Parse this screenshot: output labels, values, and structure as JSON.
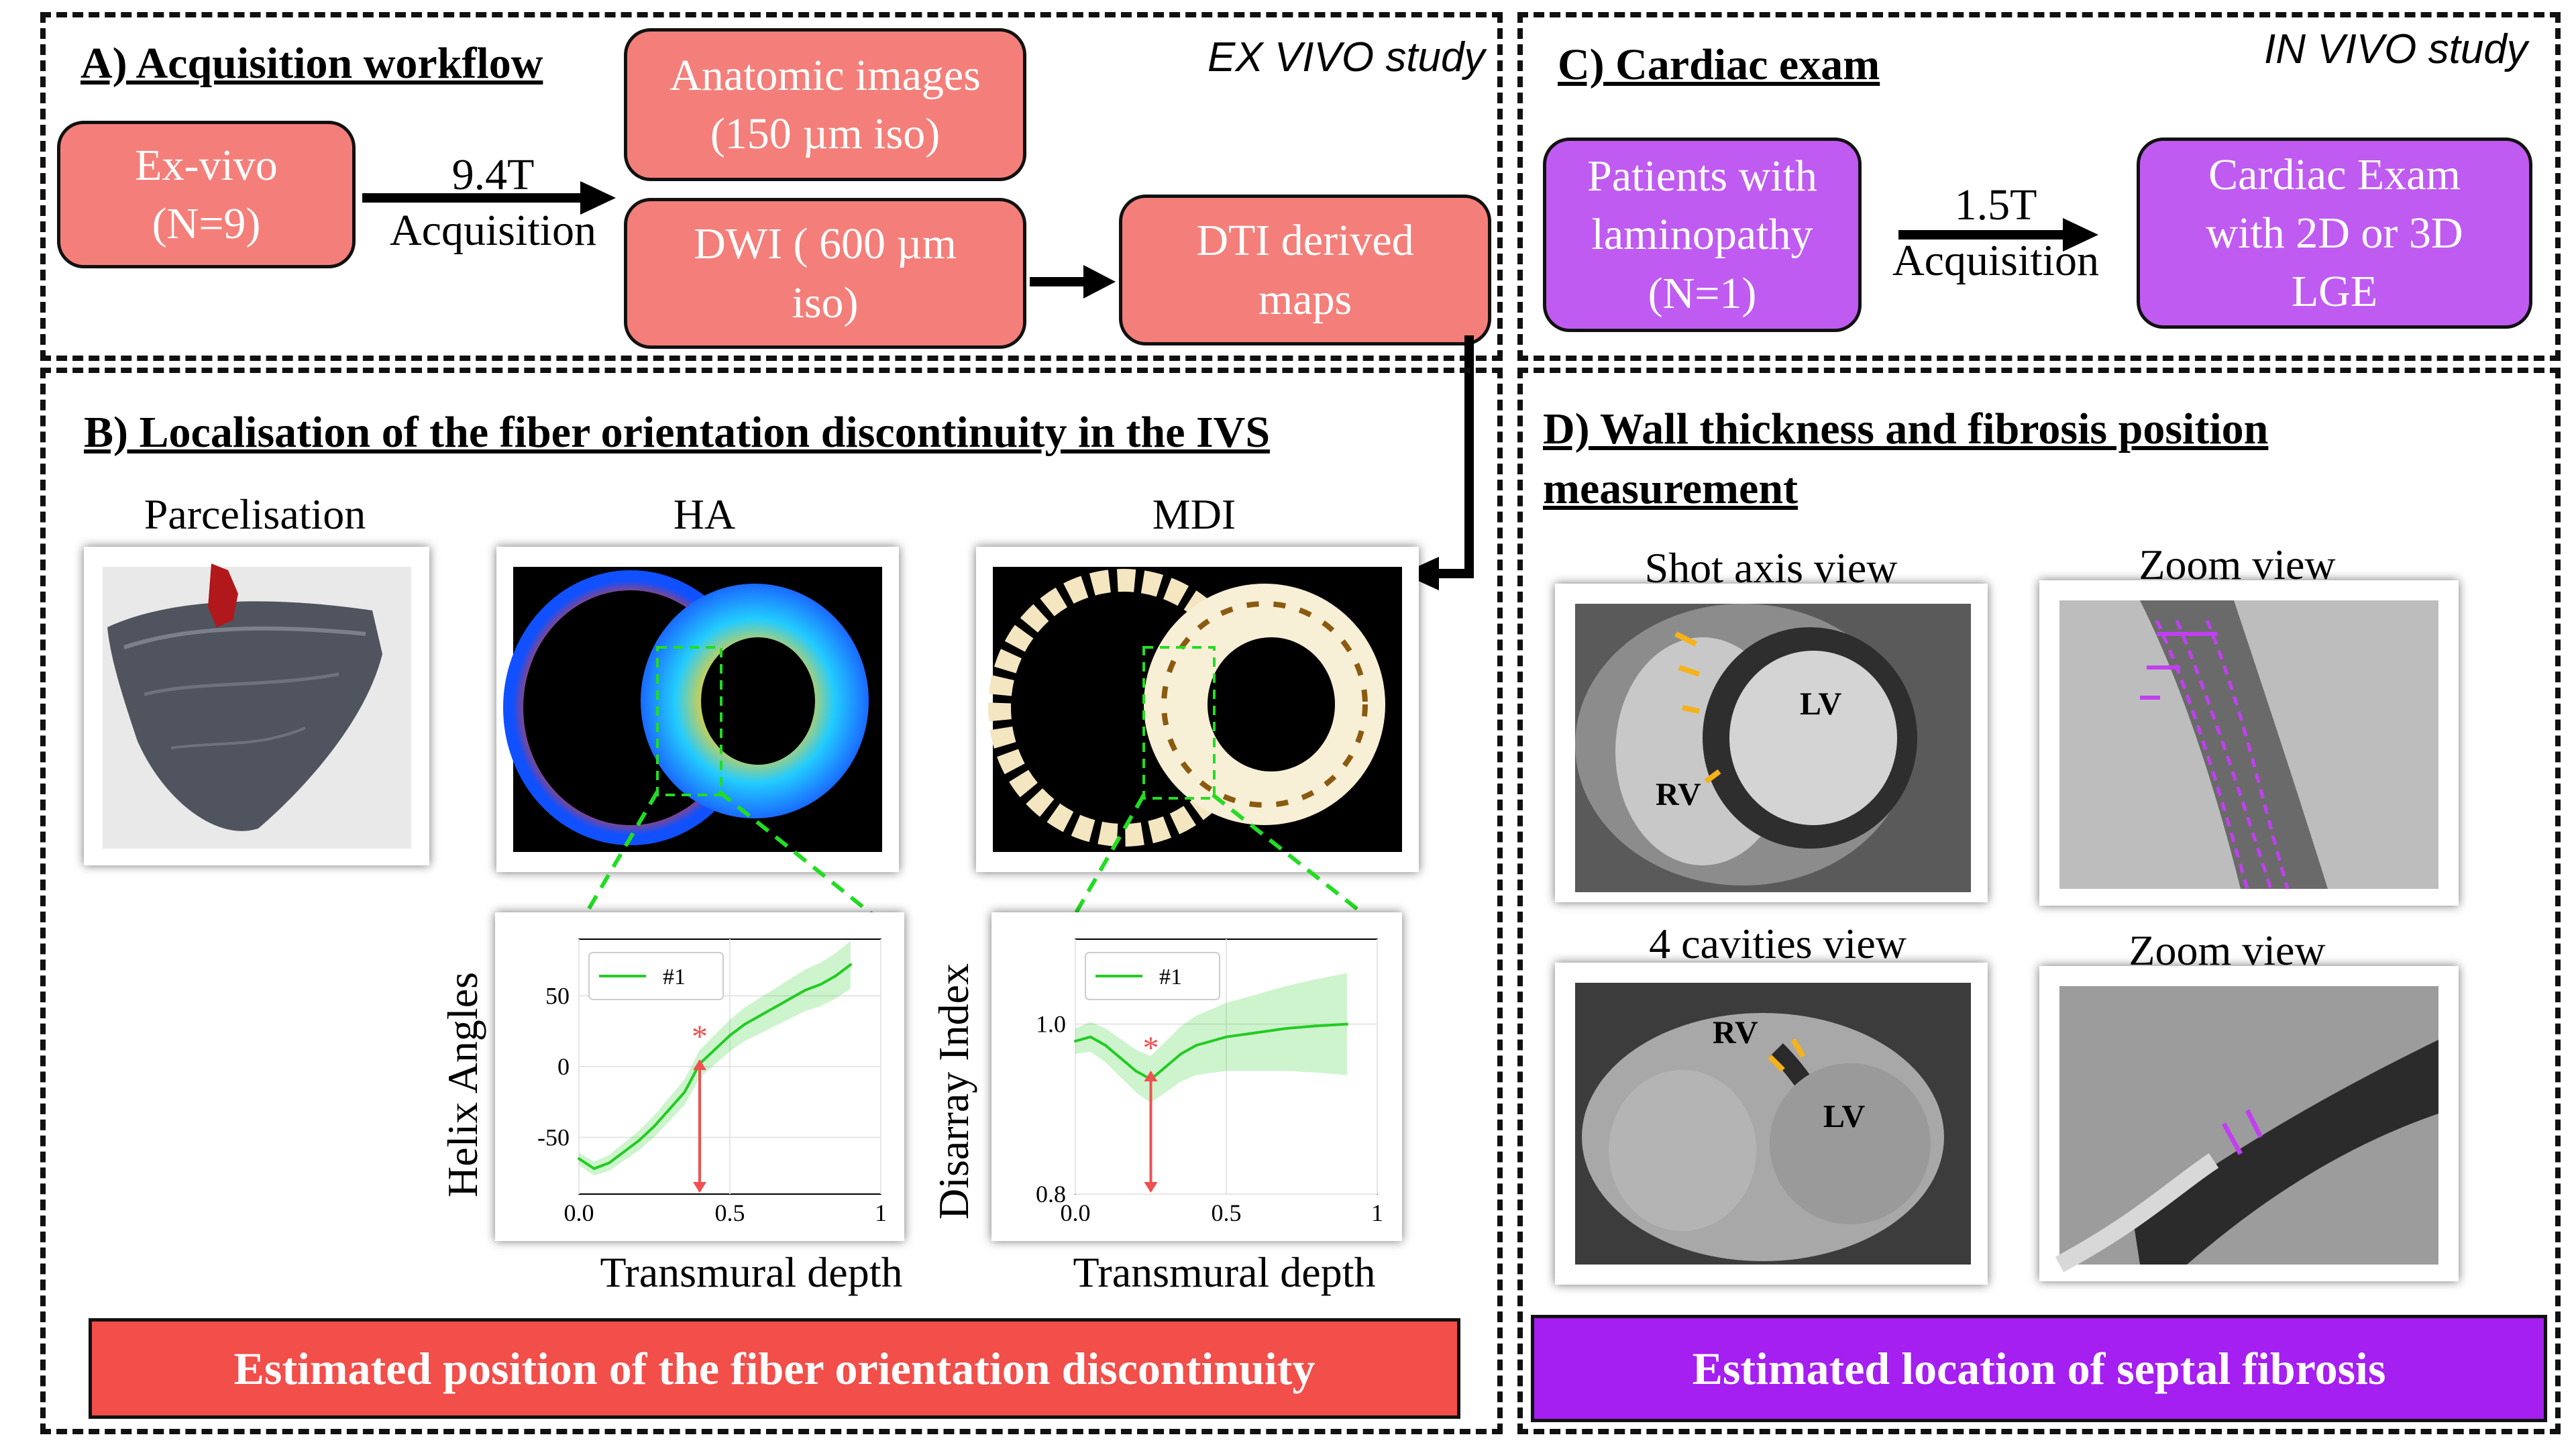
{
  "panel_a": {
    "title": "A) Acquisition workflow",
    "study": "EX VIVO study",
    "ex_vivo_box": "Ex-vivo\n(N=9)",
    "arrow_label": "9.4T\nAcquisition",
    "anatomic_box": "Anatomic images\n(150 µm iso)",
    "dwi_box": "DWI ( 600 µm\niso)",
    "dti_box": "DTI derived\nmaps"
  },
  "panel_b": {
    "title": "B) Localisation of the fiber orientation discontinuity in the IVS",
    "parcelisation_label": "Parcelisation",
    "ha_label": "HA",
    "mdi_label": "MDI",
    "banner": "Estimated position of the fiber orientation discontinuity"
  },
  "panel_c": {
    "title": "C) Cardiac exam",
    "study": "IN VIVO study",
    "patients_box": "Patients with\nlaminopathy\n(N=1)",
    "arrow_label": "1.5T\nAcquisition",
    "exam_box": "Cardiac Exam\nwith 2D or 3D\nLGE"
  },
  "panel_d": {
    "title": "D) Wall thickness and fibrosis position\nmeasurement",
    "short_axis_label": "Shot axis view",
    "zoom_label_1": "Zoom view",
    "four_cavities_label": "4 cavities view",
    "zoom_label_2": "Zoom view",
    "lv": "LV",
    "rv": "RV",
    "banner": "Estimated location of septal fibrosis"
  },
  "colors": {
    "red_box": "#f47f7a",
    "purple_box": "#c05bf2",
    "red_banner": "#f24e4a",
    "purple_banner": "#a51ff0",
    "series_green": "#22cc22",
    "marker_red": "#f05050",
    "dashed_green": "#22dd22"
  },
  "chart_data": [
    {
      "type": "line",
      "title": "",
      "xlabel": "Transmural depth",
      "ylabel": "Helix Angles",
      "xlim": [
        0,
        1
      ],
      "xticks": [
        "0.0",
        "0.5",
        "1"
      ],
      "yticks": [
        "50",
        "0",
        "-50"
      ],
      "legend": "top-left",
      "series": [
        {
          "name": "#1",
          "x": [
            0.0,
            0.05,
            0.1,
            0.15,
            0.2,
            0.25,
            0.3,
            0.35,
            0.4,
            0.45,
            0.5,
            0.55,
            0.6,
            0.65,
            0.7,
            0.75,
            0.8,
            0.85,
            0.9
          ],
          "y": [
            -65,
            -72,
            -68,
            -60,
            -52,
            -42,
            -30,
            -18,
            2,
            12,
            22,
            30,
            36,
            42,
            48,
            54,
            58,
            64,
            72
          ]
        }
      ],
      "annotation": {
        "marker": "*",
        "x": 0.4,
        "y": 8
      }
    },
    {
      "type": "line",
      "title": "",
      "xlabel": "Transmural depth",
      "ylabel": "Disarray Index",
      "xlim": [
        0,
        1
      ],
      "ylim": [
        0.8,
        1.1
      ],
      "xticks": [
        "0.0",
        "0.5",
        "1"
      ],
      "yticks": [
        "1.0",
        "0.8"
      ],
      "legend": "top-left",
      "series": [
        {
          "name": "#1",
          "x": [
            0.0,
            0.05,
            0.1,
            0.15,
            0.2,
            0.25,
            0.3,
            0.35,
            0.4,
            0.5,
            0.6,
            0.7,
            0.8,
            0.9
          ],
          "y": [
            0.98,
            0.985,
            0.975,
            0.96,
            0.945,
            0.935,
            0.95,
            0.965,
            0.975,
            0.985,
            0.99,
            0.995,
            0.998,
            1.0
          ]
        }
      ],
      "annotation": {
        "marker": "*",
        "x": 0.25,
        "y": 0.95
      }
    }
  ]
}
